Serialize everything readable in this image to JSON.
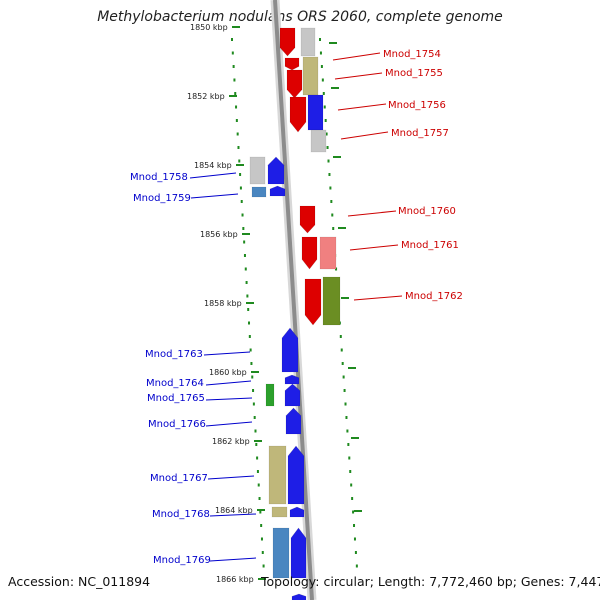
{
  "title": "Methylobacterium nodulans ORS 2060, complete genome",
  "footer": {
    "accession": "Accession: NC_011894",
    "topology": "Topology: circular; Length: 7,772,460 bp; Genes: 7,447"
  },
  "colors": {
    "backbone": "#8c8c8c",
    "ticks": "#1f8a1f",
    "label_right": "#cc0000",
    "label_left": "#0000cc"
  },
  "scale_labels": [
    "1850 kbp",
    "1852 kbp",
    "1854 kbp",
    "1856 kbp",
    "1858 kbp",
    "1860 kbp",
    "1862 kbp",
    "1864 kbp",
    "1866 kbp"
  ],
  "genes": [
    {
      "id": "Mnod_1754",
      "strand": "right",
      "fill": "#dd0000",
      "second_fill": "#c6c6c6"
    },
    {
      "id": "Mnod_1755",
      "strand": "right",
      "fill": "#dd0000",
      "second_fill": "#bfb77a"
    },
    {
      "id": "Mnod_1756",
      "strand": "right",
      "fill": "#dd0000",
      "second_fill": "#1e1ee6"
    },
    {
      "id": "Mnod_1757",
      "strand": "right",
      "fill": "#dd0000",
      "second_fill": "#c6c6c6"
    },
    {
      "id": "Mnod_1758",
      "strand": "left",
      "fill": "#1e1ee6",
      "second_fill": "#c6c6c6"
    },
    {
      "id": "Mnod_1759",
      "strand": "left",
      "fill": "#1e1ee6",
      "second_fill": "#4a86c0"
    },
    {
      "id": "Mnod_1760",
      "strand": "right",
      "fill": "#dd0000",
      "second_fill": ""
    },
    {
      "id": "Mnod_1761",
      "strand": "right",
      "fill": "#dd0000",
      "second_fill": "#f08080"
    },
    {
      "id": "Mnod_1762",
      "strand": "right",
      "fill": "#dd0000",
      "second_fill": "#6b8e23"
    },
    {
      "id": "Mnod_1763",
      "strand": "left",
      "fill": "#1e1ee6",
      "second_fill": ""
    },
    {
      "id": "Mnod_1764",
      "strand": "left",
      "fill": "#1e1ee6",
      "second_fill": ""
    },
    {
      "id": "Mnod_1765",
      "strand": "left",
      "fill": "#1e1ee6",
      "second_fill": "#2ca02c"
    },
    {
      "id": "Mnod_1766",
      "strand": "left",
      "fill": "#1e1ee6",
      "second_fill": ""
    },
    {
      "id": "Mnod_1767",
      "strand": "left",
      "fill": "#1e1ee6",
      "second_fill": "#bfb77a"
    },
    {
      "id": "Mnod_1768",
      "strand": "left",
      "fill": "#1e1ee6",
      "second_fill": "#bfb77a"
    },
    {
      "id": "Mnod_1769",
      "strand": "left",
      "fill": "#1e1ee6",
      "second_fill": "#4a86c0"
    }
  ]
}
